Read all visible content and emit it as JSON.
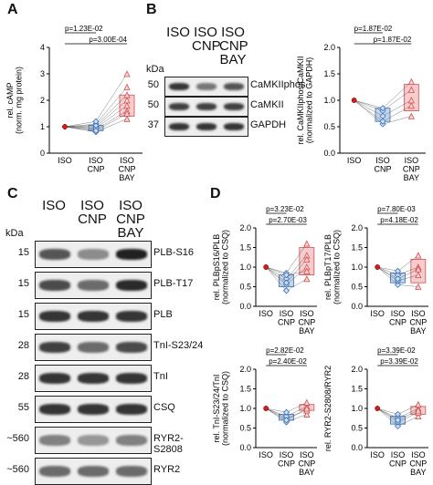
{
  "panels": {
    "A": {
      "letter": "A"
    },
    "B": {
      "letter": "B"
    },
    "C": {
      "letter": "C"
    },
    "D": {
      "letter": "D"
    }
  },
  "blotB": {
    "lanes": [
      "ISO",
      "ISO\nCNP",
      "ISO\nCNP\nBAY"
    ],
    "kda_header": "kDa",
    "rows": [
      {
        "kda": "50",
        "label": "CaMKIIphos"
      },
      {
        "kda": "50",
        "label": "CaMKII"
      },
      {
        "kda": "37",
        "label": "GAPDH"
      }
    ]
  },
  "blotC": {
    "lanes": [
      "ISO",
      "ISO\nCNP",
      "ISO\nCNP\nBAY"
    ],
    "kda_header": "kDa",
    "rows": [
      {
        "kda": "15",
        "label": "PLB-S16"
      },
      {
        "kda": "15",
        "label": "PLB-T17"
      },
      {
        "kda": "15",
        "label": "PLB"
      },
      {
        "kda": "28",
        "label": "TnI-S23/24"
      },
      {
        "kda": "28",
        "label": "TnI"
      },
      {
        "kda": "55",
        "label": "CSQ"
      },
      {
        "kda": "~560",
        "label": "RYR2-S2808"
      },
      {
        "kda": "~560",
        "label": "RYR2"
      }
    ]
  },
  "chart_data": [
    {
      "id": "A",
      "type": "scatter",
      "ylabel": "rel. cAMP\n(norm. mg protein)",
      "ylim": [
        0,
        4
      ],
      "yticks": [
        0,
        1,
        2,
        3,
        4
      ],
      "categories": [
        "ISO",
        "ISO\nCNP",
        "ISO\nCNP\nBAY"
      ],
      "pvalues": [
        {
          "text": "p=1.23E-02",
          "pair": [
            0,
            1
          ]
        },
        {
          "text": "p=3.00E-04",
          "pair": [
            0,
            2
          ]
        }
      ],
      "series": [
        {
          "values": [
            [
              1,
              1,
              1,
              1,
              1,
              1,
              1,
              1
            ],
            [
              0.8,
              0.9,
              1.0,
              1.1,
              0.95,
              1.05,
              0.85,
              1.2
            ],
            [
              1.3,
              1.6,
              2.0,
              2.5,
              1.8,
              2.2,
              1.5,
              3.0
            ]
          ]
        }
      ],
      "box": [
        null,
        [
          0.85,
          1.05
        ],
        [
          1.4,
          2.2
        ]
      ]
    },
    {
      "id": "B",
      "type": "scatter",
      "ylabel": "rel. CaMKIIphos/CaMKII\n(normalized to GAPDH)",
      "ylim": [
        0,
        2
      ],
      "yticks": [
        0.0,
        0.5,
        1.0,
        1.5,
        2.0
      ],
      "categories": [
        "ISO",
        "ISO\nCNP",
        "ISO\nCNP\nBAY"
      ],
      "pvalues": [
        {
          "text": "p=1.87E-02",
          "pair": [
            0,
            1
          ]
        },
        {
          "text": "p=1.87E-02",
          "pair": [
            0,
            2
          ]
        }
      ],
      "series": [
        {
          "values": [
            [
              1,
              1,
              1,
              1,
              1
            ],
            [
              0.55,
              0.7,
              0.8,
              0.85,
              0.6
            ],
            [
              0.7,
              1.0,
              1.2,
              1.35,
              0.9
            ]
          ]
        }
      ],
      "box": [
        null,
        [
          0.6,
          0.85
        ],
        [
          0.8,
          1.3
        ]
      ]
    },
    {
      "id": "D1",
      "type": "scatter",
      "ylabel": "rel. PLBpS16/PLB\n(normalized to CSQ)",
      "ylim": [
        0,
        2
      ],
      "yticks": [
        0.0,
        0.5,
        1.0,
        1.5,
        2.0
      ],
      "categories": [
        "ISO",
        "ISO\nCNP",
        "ISO\nCNP\nBAY"
      ],
      "pvalues": [
        {
          "text": "p=3.23E-02",
          "pair": [
            0,
            1
          ]
        },
        {
          "text": "p=2.70E-03",
          "pair": [
            0,
            2
          ]
        }
      ],
      "series": [
        {
          "values": [
            [
              1,
              1,
              1,
              1,
              1,
              1
            ],
            [
              0.4,
              0.55,
              0.7,
              0.85,
              0.6,
              0.8
            ],
            [
              0.7,
              1.0,
              1.3,
              1.6,
              1.2,
              0.9
            ]
          ]
        }
      ],
      "box": [
        null,
        [
          0.5,
          0.8
        ],
        [
          0.8,
          1.5
        ]
      ]
    },
    {
      "id": "D2",
      "type": "scatter",
      "ylabel": "rel. PLBpT17/PLB\n(normalized to CSQ)",
      "ylim": [
        0,
        2
      ],
      "yticks": [
        0.0,
        0.5,
        1.0,
        1.5,
        2.0
      ],
      "categories": [
        "ISO",
        "ISO\nCNP",
        "ISO\nCNP\nBAY"
      ],
      "pvalues": [
        {
          "text": "p=7.80E-03",
          "pair": [
            0,
            1
          ]
        },
        {
          "text": "p=4.18E-02",
          "pair": [
            0,
            2
          ]
        }
      ],
      "series": [
        {
          "values": [
            [
              1,
              1,
              1,
              1,
              1
            ],
            [
              0.55,
              0.65,
              0.8,
              0.9,
              0.7
            ],
            [
              0.5,
              0.8,
              1.0,
              1.3,
              0.95
            ]
          ]
        }
      ],
      "box": [
        null,
        [
          0.6,
          0.85
        ],
        [
          0.6,
          1.2
        ]
      ]
    },
    {
      "id": "D3",
      "type": "scatter",
      "ylabel": "rel. TnI-S23/24/TnI\n(normalized to CSQ)",
      "ylim": [
        0,
        2
      ],
      "yticks": [
        0.0,
        0.5,
        1.0,
        1.5,
        2.0
      ],
      "categories": [
        "ISO",
        "ISO\nCNP",
        "ISO\nCNP\nBAY"
      ],
      "pvalues": [
        {
          "text": "p=2.82E-02",
          "pair": [
            0,
            1
          ]
        },
        {
          "text": "p=2.40E-02",
          "pair": [
            0,
            2
          ]
        }
      ],
      "series": [
        {
          "values": [
            [
              1,
              1,
              1,
              1,
              1
            ],
            [
              0.65,
              0.75,
              0.8,
              0.9,
              0.7
            ],
            [
              0.85,
              0.95,
              1.05,
              1.15,
              1.0
            ]
          ]
        }
      ],
      "box": [
        null,
        [
          0.7,
          0.85
        ],
        [
          0.95,
          1.1
        ]
      ]
    },
    {
      "id": "D4",
      "type": "scatter",
      "ylabel": "rel. RYR2-S2808/RYR2",
      "ylim": [
        0,
        2
      ],
      "yticks": [
        0.0,
        0.5,
        1.0,
        1.5,
        2.0
      ],
      "categories": [
        "ISO",
        "ISO\nCNP",
        "ISO\nCNP\nBAY"
      ],
      "pvalues": [
        {
          "text": "p=3.39E-02",
          "pair": [
            0,
            1
          ]
        },
        {
          "text": "p=3.39E-02",
          "pair": [
            0,
            2
          ]
        }
      ],
      "series": [
        {
          "values": [
            [
              1,
              1,
              1,
              1,
              1
            ],
            [
              0.55,
              0.65,
              0.75,
              0.85,
              0.7
            ],
            [
              0.8,
              0.9,
              1.0,
              1.1,
              0.95
            ]
          ]
        }
      ],
      "box": [
        null,
        [
          0.6,
          0.8
        ],
        [
          0.85,
          1.05
        ]
      ]
    }
  ]
}
